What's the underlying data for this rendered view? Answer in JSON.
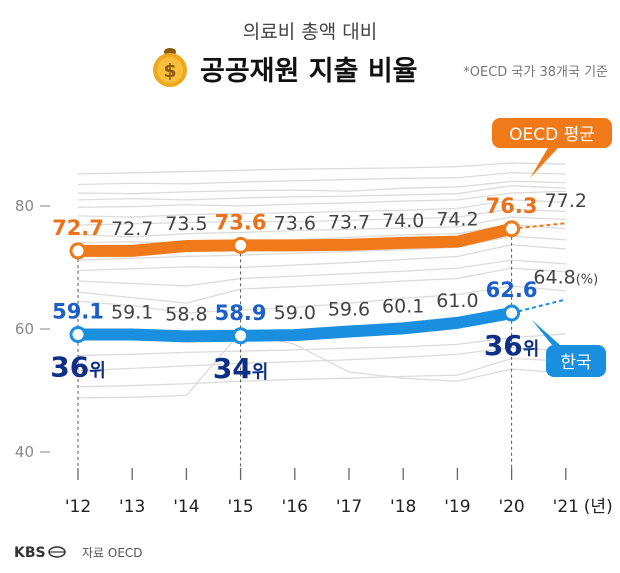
{
  "header": {
    "subtitle": "의료비 총액 대비",
    "title": "공공재원 지출 비율",
    "note": "*OECD 국가 38개국 기준"
  },
  "chart_data": {
    "type": "line",
    "x": [
      "'12",
      "'13",
      "'14",
      "'15",
      "'16",
      "'17",
      "'18",
      "'19",
      "'20",
      "'21"
    ],
    "x_unit": "(년)",
    "y_unit": "(%)",
    "yticks": [
      40,
      60,
      80
    ],
    "ylim": [
      35,
      92
    ],
    "series": [
      {
        "name": "OECD 평균",
        "color": "#f07a1a",
        "values": [
          72.7,
          72.7,
          73.5,
          73.6,
          73.6,
          73.7,
          74.0,
          74.2,
          76.3,
          77.2
        ],
        "projected_from_index": 8
      },
      {
        "name": "한국",
        "color": "#1a8fe0",
        "values": [
          59.1,
          59.1,
          58.8,
          58.9,
          59.0,
          59.6,
          60.1,
          61.0,
          62.6,
          64.8
        ],
        "projected_from_index": 8
      }
    ],
    "highlight_indices": [
      0,
      3,
      8
    ],
    "korea_rank": [
      {
        "index": 0,
        "rank": "36",
        "suffix": "위"
      },
      {
        "index": 3,
        "rank": "34",
        "suffix": "위"
      },
      {
        "index": 8,
        "rank": "36",
        "suffix": "위"
      }
    ],
    "background_countries_color": "#dcdcdc"
  },
  "footer": {
    "logo": "KBS",
    "source": "자료 OECD"
  }
}
